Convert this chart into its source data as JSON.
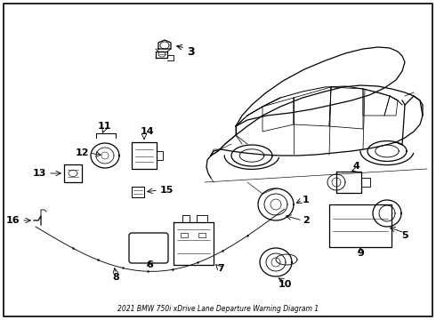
{
  "title": "2021 BMW 750i xDrive Lane Departure Warning Diagram 1",
  "background_color": "#ffffff",
  "border_color": "#000000",
  "text_color": "#000000",
  "figsize": [
    4.9,
    3.6
  ],
  "dpi": 100
}
